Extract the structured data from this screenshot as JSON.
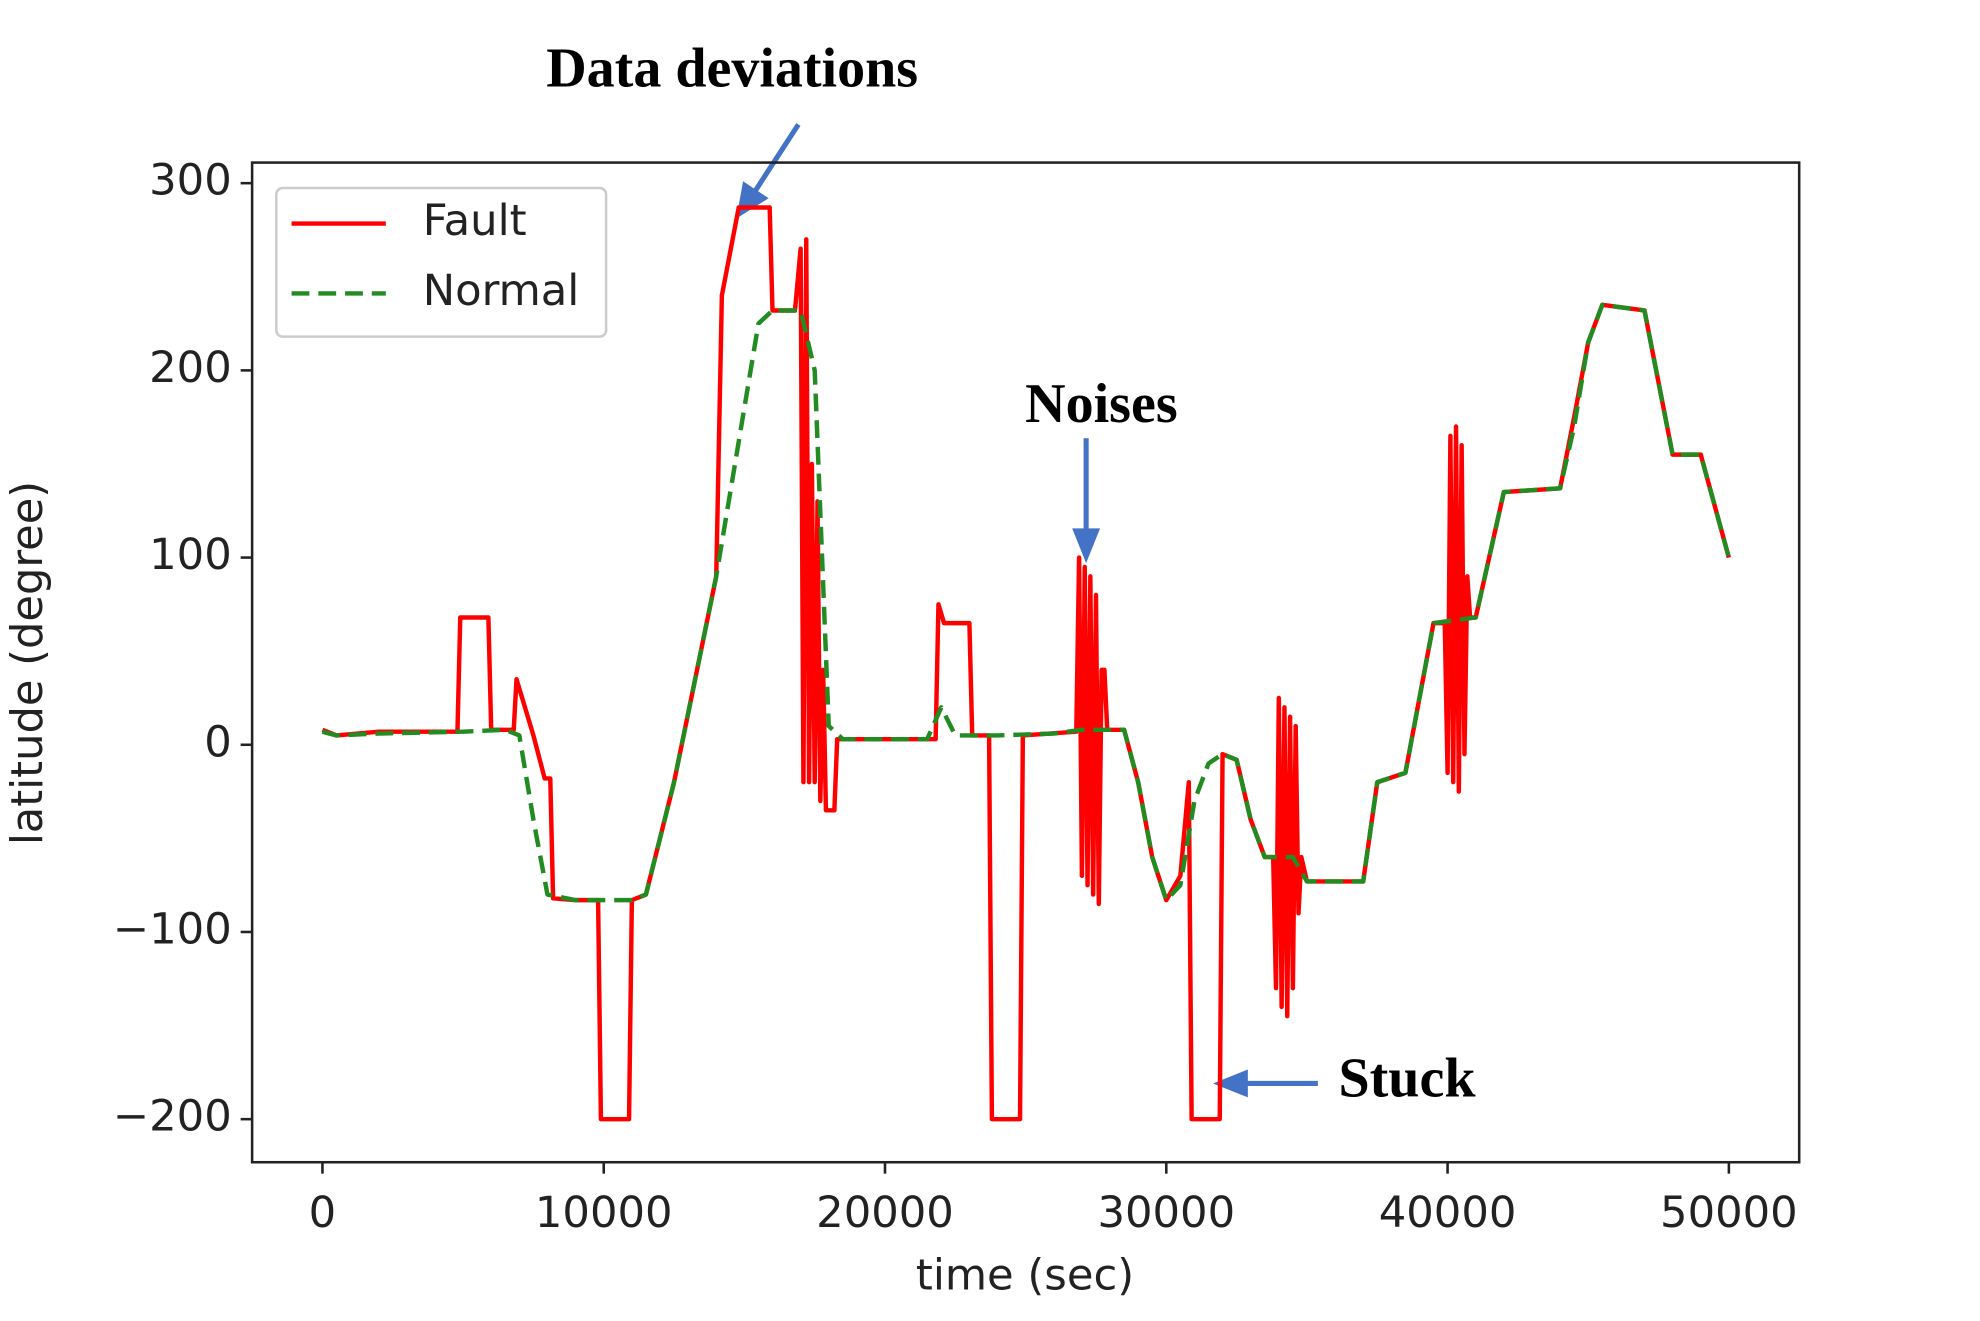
{
  "chart_data": {
    "type": "line",
    "xlabel": "time (sec)",
    "ylabel": "latitude (degree)",
    "xlim": [
      -2500,
      52500
    ],
    "ylim": [
      -223,
      311
    ],
    "xticks": [
      0,
      10000,
      20000,
      30000,
      40000,
      50000
    ],
    "yticks": [
      {
        "value": -200,
        "label": "−200"
      },
      {
        "value": -100,
        "label": "−100"
      },
      0,
      100,
      200,
      300
    ],
    "legend": "upper left",
    "annotations": [
      "Data deviations",
      "Noises",
      "Stuck"
    ],
    "series": [
      {
        "name": "Fault",
        "color": "#ff0000",
        "linestyle": "solid",
        "x": [
          0,
          500,
          2000,
          4800,
          4900,
          5900,
          6000,
          6800,
          6900,
          7500,
          7900,
          8100,
          8200,
          9000,
          9800,
          9900,
          10900,
          11000,
          11500,
          12500,
          14000,
          14200,
          14800,
          15900,
          16000,
          16800,
          17000,
          17100,
          17200,
          17300,
          17400,
          17500,
          17600,
          17700,
          17800,
          17900,
          18200,
          18300,
          21800,
          21900,
          22100,
          23000,
          23100,
          23700,
          23800,
          24800,
          24900,
          26800,
          26900,
          27000,
          27100,
          27200,
          27300,
          27400,
          27500,
          27600,
          27700,
          27800,
          27900,
          28500,
          29000,
          29500,
          30000,
          30500,
          30800,
          30900,
          31900,
          32000,
          32500,
          33000,
          33500,
          33800,
          33900,
          34000,
          34100,
          34200,
          34300,
          34400,
          34500,
          34600,
          34700,
          34800,
          35000,
          37000,
          37500,
          38500,
          39500,
          39900,
          40000,
          40100,
          40200,
          40300,
          40400,
          40500,
          40600,
          40700,
          40800,
          41000,
          42000,
          44000,
          44500,
          45000,
          45500,
          47000,
          48000,
          49000,
          50000
        ],
        "values": [
          8,
          5,
          7,
          7,
          68,
          68,
          8,
          8,
          35,
          5,
          -18,
          -18,
          -82,
          -83,
          -83,
          -200,
          -200,
          -83,
          -80,
          -20,
          90,
          240,
          287,
          287,
          232,
          232,
          265,
          -20,
          270,
          -20,
          150,
          -20,
          130,
          -30,
          40,
          -35,
          -35,
          3,
          3,
          75,
          65,
          65,
          5,
          5,
          -200,
          -200,
          5,
          7,
          100,
          -70,
          95,
          -75,
          90,
          -80,
          80,
          -85,
          40,
          40,
          8,
          8,
          -20,
          -60,
          -83,
          -70,
          -20,
          -200,
          -200,
          -5,
          -8,
          -40,
          -60,
          -60,
          -130,
          25,
          -140,
          20,
          -145,
          15,
          -130,
          10,
          -90,
          -60,
          -73,
          -73,
          -20,
          -15,
          65,
          65,
          -15,
          165,
          -20,
          170,
          -25,
          160,
          -5,
          90,
          68,
          68,
          135,
          137,
          175,
          215,
          235,
          232,
          155,
          155,
          100
        ]
      },
      {
        "name": "Normal",
        "color": "#228b22",
        "linestyle": "dashed",
        "x": [
          0,
          500,
          2000,
          5000,
          6500,
          7000,
          7500,
          8000,
          9000,
          11000,
          11500,
          12500,
          14000,
          15000,
          15500,
          16000,
          17000,
          17500,
          18000,
          18500,
          21500,
          22000,
          22500,
          24000,
          26000,
          27000,
          28500,
          29000,
          29500,
          30000,
          30500,
          31000,
          31500,
          32000,
          32500,
          33000,
          33500,
          34500,
          35000,
          37000,
          37500,
          38500,
          39500,
          41000,
          42000,
          44000,
          44500,
          45000,
          45500,
          47000,
          48000,
          49000,
          50000
        ],
        "values": [
          7,
          5,
          6,
          7,
          8,
          5,
          -40,
          -80,
          -83,
          -83,
          -80,
          -20,
          90,
          180,
          225,
          232,
          232,
          200,
          10,
          3,
          3,
          20,
          5,
          5,
          6,
          8,
          8,
          -20,
          -60,
          -83,
          -75,
          -30,
          -10,
          -5,
          -8,
          -40,
          -60,
          -60,
          -73,
          -73,
          -20,
          -15,
          65,
          68,
          135,
          137,
          170,
          215,
          235,
          232,
          155,
          155,
          100
        ]
      }
    ]
  }
}
